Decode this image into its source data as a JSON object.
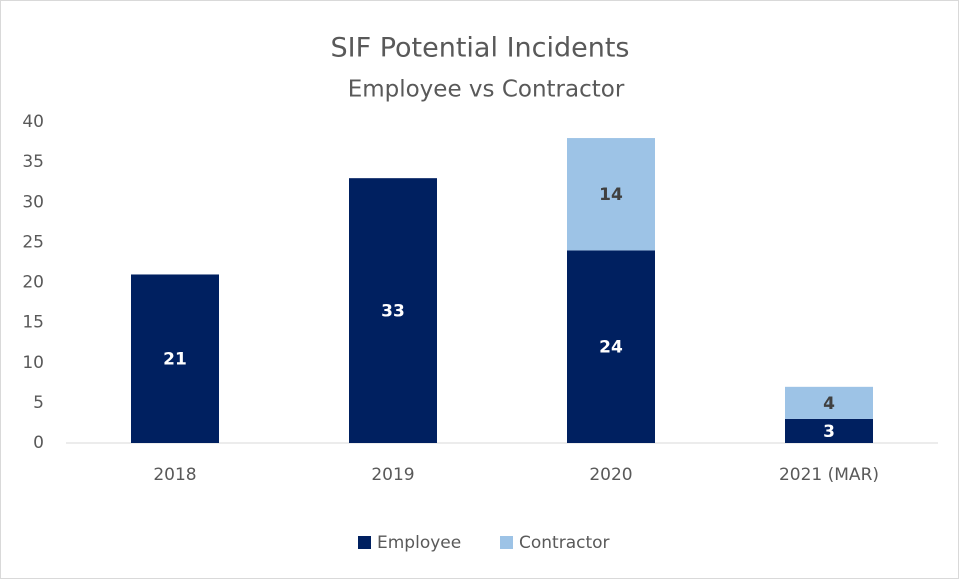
{
  "chart_data": {
    "type": "stacked_bar",
    "title": "SIF Potential Incidents",
    "subtitle": "Employee vs Contractor",
    "categories": [
      "2018",
      "2019",
      "2020",
      "2021 (MAR)"
    ],
    "series": [
      {
        "name": "Employee",
        "color": "#002060",
        "values": [
          21,
          33,
          24,
          3
        ]
      },
      {
        "name": "Contractor",
        "color": "#9dc3e6",
        "values": [
          null,
          null,
          14,
          4
        ]
      }
    ],
    "ylim": [
      0,
      40
    ],
    "yticks": [
      0,
      5,
      10,
      15,
      20,
      25,
      30,
      35,
      40
    ],
    "grid": false,
    "legend": "bottom"
  }
}
